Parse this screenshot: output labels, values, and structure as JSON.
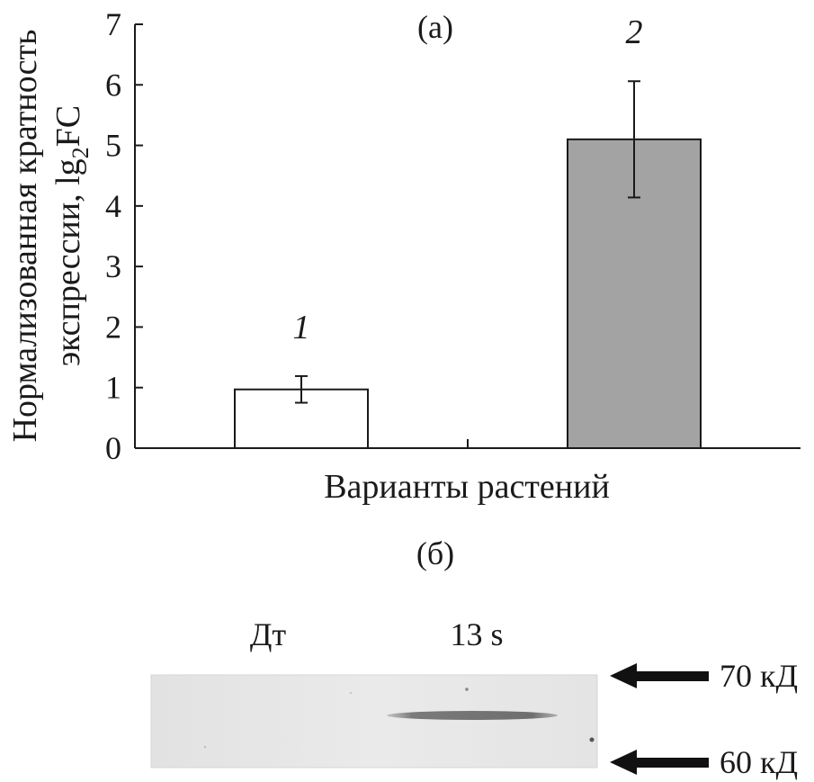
{
  "panel_a": {
    "label": "(а)"
  },
  "panel_b": {
    "label": "(б)"
  },
  "chart_data": {
    "type": "bar",
    "categories": [
      "1",
      "2"
    ],
    "values": [
      0.97,
      5.1
    ],
    "errors": [
      0.22,
      0.96
    ],
    "bar_colors": [
      "#ffffff",
      "#a3a3a3"
    ],
    "xlabel": "Варианты растений",
    "ylabel_line1": "Нормализованная кратность",
    "ylabel_line2_prefix": "экспрессии, lg",
    "ylabel_subscript": "2",
    "ylabel_suffix": "FC",
    "ylim": [
      0,
      7
    ],
    "yticks": [
      "0",
      "1",
      "2",
      "3",
      "4",
      "5",
      "6",
      "7"
    ],
    "grid": false
  },
  "blot": {
    "lanes": [
      "Дт",
      "13 s"
    ],
    "markers": [
      "70 кД",
      "60 кД"
    ]
  }
}
